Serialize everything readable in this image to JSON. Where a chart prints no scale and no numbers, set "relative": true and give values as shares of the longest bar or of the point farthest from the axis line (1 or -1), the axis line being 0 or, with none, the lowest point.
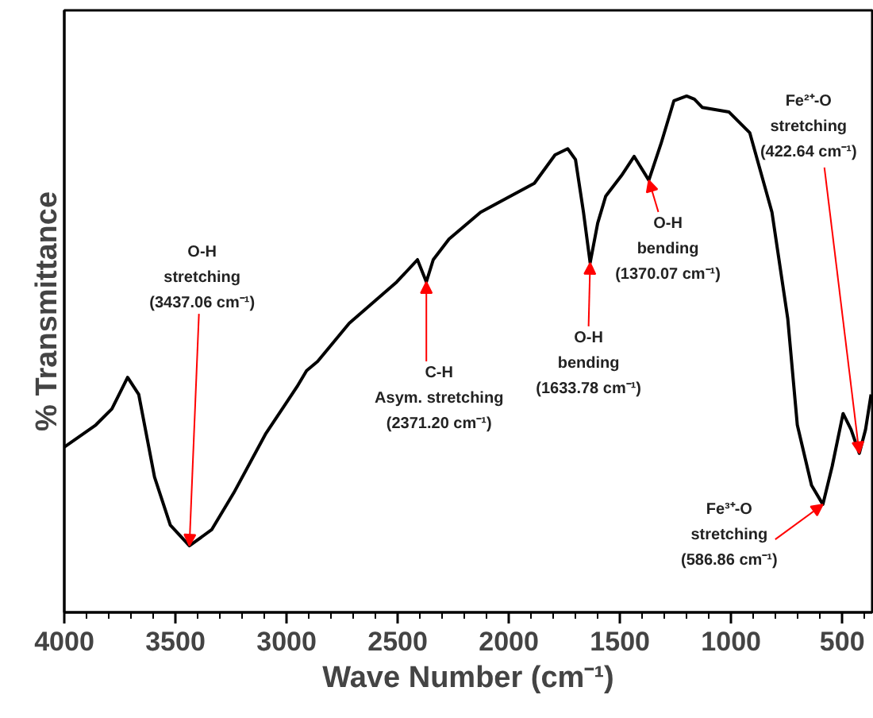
{
  "chart_data": {
    "type": "line",
    "xlabel": "Wave Number (cm⁻¹)",
    "ylabel": "% Transmittance",
    "relative": true,
    "xlim": [
      4000,
      365
    ],
    "xticks": [
      4000,
      3500,
      3000,
      2500,
      2000,
      1500,
      1000,
      500
    ],
    "grid": false,
    "marker": "none",
    "line_style": "solid",
    "x": [
      4000,
      3858,
      3786,
      3715,
      3665,
      3594,
      3523,
      3437,
      3337,
      3238,
      3095,
      2953,
      2910,
      2860,
      2718,
      2504,
      2411,
      2371,
      2340,
      2269,
      2127,
      1885,
      1792,
      1735,
      1700,
      1664,
      1634,
      1600,
      1564,
      1493,
      1436,
      1370,
      1315,
      1257,
      1200,
      1165,
      1130,
      1009,
      916,
      816,
      745,
      702,
      638,
      587,
      545,
      496,
      460,
      423,
      395,
      370
    ],
    "series": [
      {
        "color": "#000000",
        "values": [
          0.32,
          0.363,
          0.394,
          0.455,
          0.422,
          0.262,
          0.169,
          0.129,
          0.16,
          0.231,
          0.345,
          0.437,
          0.468,
          0.486,
          0.56,
          0.64,
          0.683,
          0.64,
          0.683,
          0.723,
          0.775,
          0.831,
          0.886,
          0.898,
          0.877,
          0.775,
          0.677,
          0.754,
          0.806,
          0.846,
          0.883,
          0.837,
          0.908,
          0.991,
          1.0,
          0.994,
          0.978,
          0.969,
          0.929,
          0.775,
          0.569,
          0.363,
          0.246,
          0.209,
          0.283,
          0.385,
          0.354,
          0.308,
          0.354,
          0.422
        ]
      }
    ],
    "annotations": [
      {
        "text": "O-H\nstretching\n(3437.06 cm⁻¹)",
        "x": 3437,
        "y": 0.129
      },
      {
        "text": "C-H\nAsym. stretching\n(2371.20 cm⁻¹)",
        "x": 2371,
        "y": 0.64
      },
      {
        "text": "O-H\nbending\n(1633.78 cm⁻¹)",
        "x": 1634,
        "y": 0.677
      },
      {
        "text": "O-H\nbending\n(1370.07 cm⁻¹)",
        "x": 1370,
        "y": 0.837
      },
      {
        "text": "Fe³⁺-O\nstretching\n(586.86 cm⁻¹)",
        "x": 587,
        "y": 0.209
      },
      {
        "text": "Fe²⁺-O\nstretching\n(422.64 cm⁻¹)",
        "x": 423,
        "y": 0.308
      }
    ]
  }
}
